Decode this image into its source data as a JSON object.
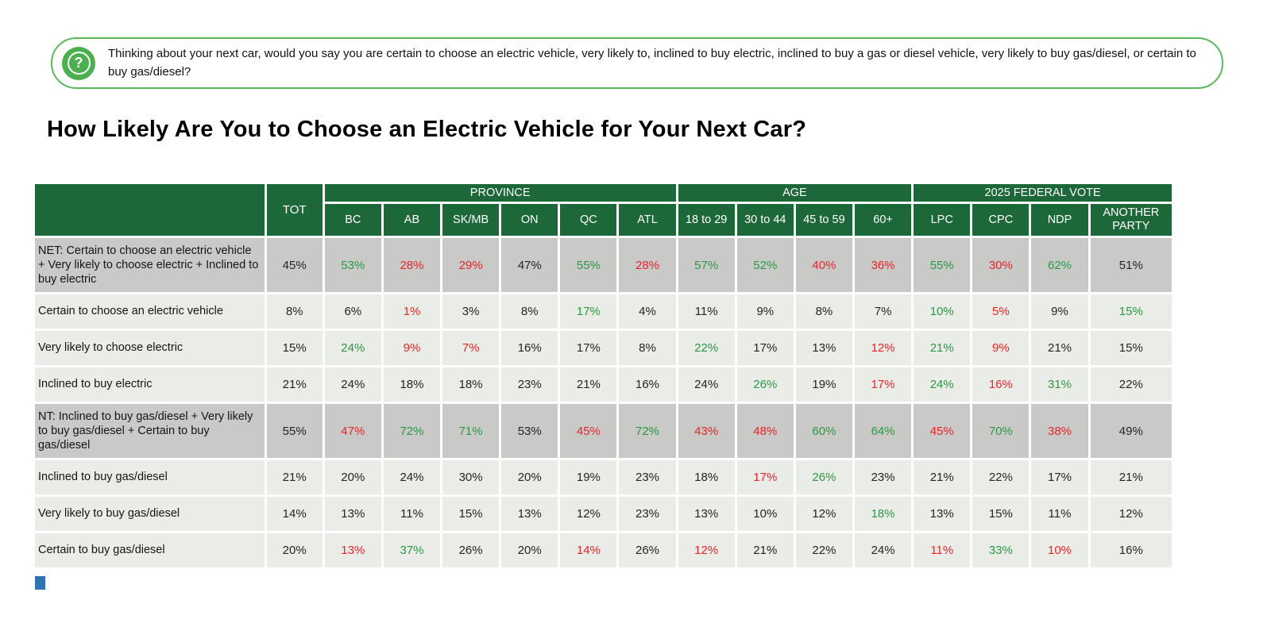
{
  "question_banner": {
    "icon": "question-mark-icon",
    "text": "Thinking about your next car, would you say you are certain to choose an electric vehicle, very likely to, inclined to buy electric, inclined to buy a gas or diesel vehicle, very likely to buy gas/diesel, or certain to buy gas/diesel?"
  },
  "colors": {
    "header_green": "#1D6839",
    "banner_border": "#5CB85C",
    "icon_green": "#4CAF50",
    "net_row_bg": "#C9C9C7",
    "row_bg": "#EAECE7",
    "positive_green": "#2B9846",
    "negative_red": "#EB2428",
    "corner_blue": "#2E74B5"
  },
  "chart_data": {
    "type": "table",
    "title": "How Likely Are You to Choose an Electric Vehicle for Your Next Car?",
    "column_groups": [
      {
        "label": "PROVINCE",
        "span": 6
      },
      {
        "label": "AGE",
        "span": 4
      },
      {
        "label": "2025 FEDERAL VOTE",
        "span": 4
      }
    ],
    "columns": [
      "TOT",
      "BC",
      "AB",
      "SK/MB",
      "ON",
      "QC",
      "ATL",
      "18 to 29",
      "30 to 44",
      "45 to 59",
      "60+",
      "LPC",
      "CPC",
      "NDP",
      "ANOTHER PARTY"
    ],
    "color_key": {
      "k": "neutral-black",
      "g": "significantly-higher-green",
      "r": "significantly-lower-red"
    },
    "rows": [
      {
        "label": "NET: Certain to choose an electric vehicle + Very likely to choose electric + Inclined to buy electric",
        "net": true,
        "values": [
          "45%",
          "53%",
          "28%",
          "29%",
          "47%",
          "55%",
          "28%",
          "57%",
          "52%",
          "40%",
          "36%",
          "55%",
          "30%",
          "62%",
          "51%"
        ],
        "colors": [
          "k",
          "g",
          "r",
          "r",
          "k",
          "g",
          "r",
          "g",
          "g",
          "r",
          "r",
          "g",
          "r",
          "g",
          "k"
        ]
      },
      {
        "label": "Certain to choose an electric vehicle",
        "net": false,
        "values": [
          "8%",
          "6%",
          "1%",
          "3%",
          "8%",
          "17%",
          "4%",
          "11%",
          "9%",
          "8%",
          "7%",
          "10%",
          "5%",
          "9%",
          "15%"
        ],
        "colors": [
          "k",
          "k",
          "r",
          "k",
          "k",
          "g",
          "k",
          "k",
          "k",
          "k",
          "k",
          "g",
          "r",
          "k",
          "g"
        ]
      },
      {
        "label": "Very likely to choose electric",
        "net": false,
        "values": [
          "15%",
          "24%",
          "9%",
          "7%",
          "16%",
          "17%",
          "8%",
          "22%",
          "17%",
          "13%",
          "12%",
          "21%",
          "9%",
          "21%",
          "15%"
        ],
        "colors": [
          "k",
          "g",
          "r",
          "r",
          "k",
          "k",
          "k",
          "g",
          "k",
          "k",
          "r",
          "g",
          "r",
          "k",
          "k"
        ]
      },
      {
        "label": "Inclined to buy electric",
        "net": false,
        "values": [
          "21%",
          "24%",
          "18%",
          "18%",
          "23%",
          "21%",
          "16%",
          "24%",
          "26%",
          "19%",
          "17%",
          "24%",
          "16%",
          "31%",
          "22%"
        ],
        "colors": [
          "k",
          "k",
          "k",
          "k",
          "k",
          "k",
          "k",
          "k",
          "g",
          "k",
          "r",
          "g",
          "r",
          "g",
          "k"
        ]
      },
      {
        "label": "NT: Inclined to buy gas/diesel + Very likely to buy gas/diesel + Certain to buy gas/diesel",
        "net": true,
        "values": [
          "55%",
          "47%",
          "72%",
          "71%",
          "53%",
          "45%",
          "72%",
          "43%",
          "48%",
          "60%",
          "64%",
          "45%",
          "70%",
          "38%",
          "49%"
        ],
        "colors": [
          "k",
          "r",
          "g",
          "g",
          "k",
          "r",
          "g",
          "r",
          "r",
          "g",
          "g",
          "r",
          "g",
          "r",
          "k"
        ]
      },
      {
        "label": "Inclined to buy gas/diesel",
        "net": false,
        "values": [
          "21%",
          "20%",
          "24%",
          "30%",
          "20%",
          "19%",
          "23%",
          "18%",
          "17%",
          "26%",
          "23%",
          "21%",
          "22%",
          "17%",
          "21%"
        ],
        "colors": [
          "k",
          "k",
          "k",
          "k",
          "k",
          "k",
          "k",
          "k",
          "r",
          "g",
          "k",
          "k",
          "k",
          "k",
          "k"
        ]
      },
      {
        "label": "Very likely to buy gas/diesel",
        "net": false,
        "values": [
          "14%",
          "13%",
          "11%",
          "15%",
          "13%",
          "12%",
          "23%",
          "13%",
          "10%",
          "12%",
          "18%",
          "13%",
          "15%",
          "11%",
          "12%"
        ],
        "colors": [
          "k",
          "k",
          "k",
          "k",
          "k",
          "k",
          "k",
          "k",
          "k",
          "k",
          "g",
          "k",
          "k",
          "k",
          "k"
        ]
      },
      {
        "label": "Certain to buy gas/diesel",
        "net": false,
        "values": [
          "20%",
          "13%",
          "37%",
          "26%",
          "20%",
          "14%",
          "26%",
          "12%",
          "21%",
          "22%",
          "24%",
          "11%",
          "33%",
          "10%",
          "16%"
        ],
        "colors": [
          "k",
          "r",
          "g",
          "k",
          "k",
          "r",
          "k",
          "r",
          "k",
          "k",
          "k",
          "r",
          "g",
          "r",
          "k"
        ]
      }
    ]
  }
}
